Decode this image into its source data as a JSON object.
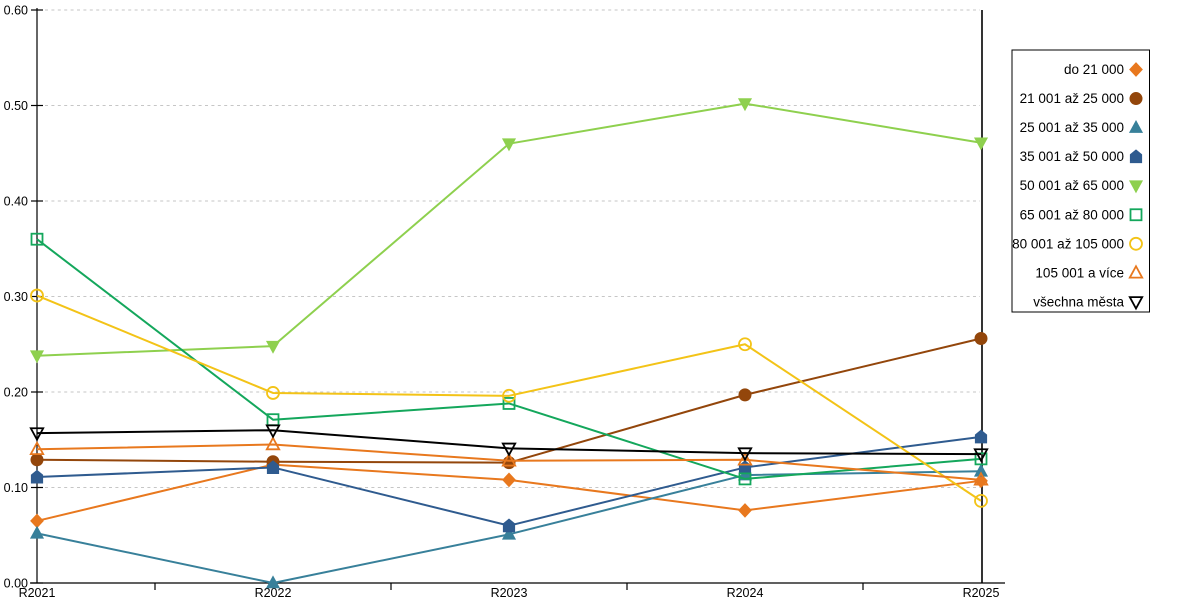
{
  "chart_data": {
    "type": "line",
    "title": "",
    "xlabel": "",
    "ylabel": "",
    "x": [
      "R2021",
      "R2022",
      "R2023",
      "R2024",
      "R2025"
    ],
    "ylim": [
      0.0,
      0.6
    ],
    "ytick_step": 0.1,
    "ytick_labels": [
      "0.00",
      "0.10",
      "0.20",
      "0.30",
      "0.40",
      "0.50",
      "0.60"
    ],
    "grid": "horizontal-dashed",
    "grid_color": "#c6c6c6",
    "axis_color": "#000000",
    "legend_position": "right",
    "legend_border_color": "#000000",
    "series": [
      {
        "name": "do 21 000",
        "marker": "diamond-filled",
        "color": "#e8781e",
        "values": [
          0.065,
          0.124,
          0.108,
          0.076,
          0.107
        ]
      },
      {
        "name": "21 001 až 25 000",
        "marker": "circle-filled",
        "color": "#93460b",
        "values": [
          0.129,
          0.127,
          0.126,
          0.197,
          0.256
        ]
      },
      {
        "name": "25 001 až 35 000",
        "marker": "triangle-up-filled",
        "color": "#38809a",
        "values": [
          0.052,
          0.0,
          0.051,
          0.113,
          0.117
        ]
      },
      {
        "name": "35 001 až 50 000",
        "marker": "pentagon-filled",
        "color": "#2f5b8f",
        "values": [
          0.111,
          0.121,
          0.06,
          0.121,
          0.153
        ]
      },
      {
        "name": "50 001 až 65 000",
        "marker": "triangle-down-filled",
        "color": "#8ed04e",
        "values": [
          0.238,
          0.248,
          0.46,
          0.502,
          0.461
        ]
      },
      {
        "name": "65 001 až 80 000",
        "marker": "square-open",
        "color": "#14a75c",
        "values": [
          0.36,
          0.171,
          0.188,
          0.109,
          0.13
        ]
      },
      {
        "name": "80 001 až 105 000",
        "marker": "circle-open",
        "color": "#f3c317",
        "values": [
          0.301,
          0.199,
          0.196,
          0.25,
          0.086
        ]
      },
      {
        "name": "105 001 a více",
        "marker": "triangle-up-open",
        "color": "#e8781e",
        "values": [
          0.14,
          0.145,
          0.128,
          0.129,
          0.108
        ]
      },
      {
        "name": "všechna města",
        "marker": "triangle-down-open",
        "color": "#000000",
        "values": [
          0.157,
          0.16,
          0.141,
          0.136,
          0.135
        ]
      }
    ]
  }
}
